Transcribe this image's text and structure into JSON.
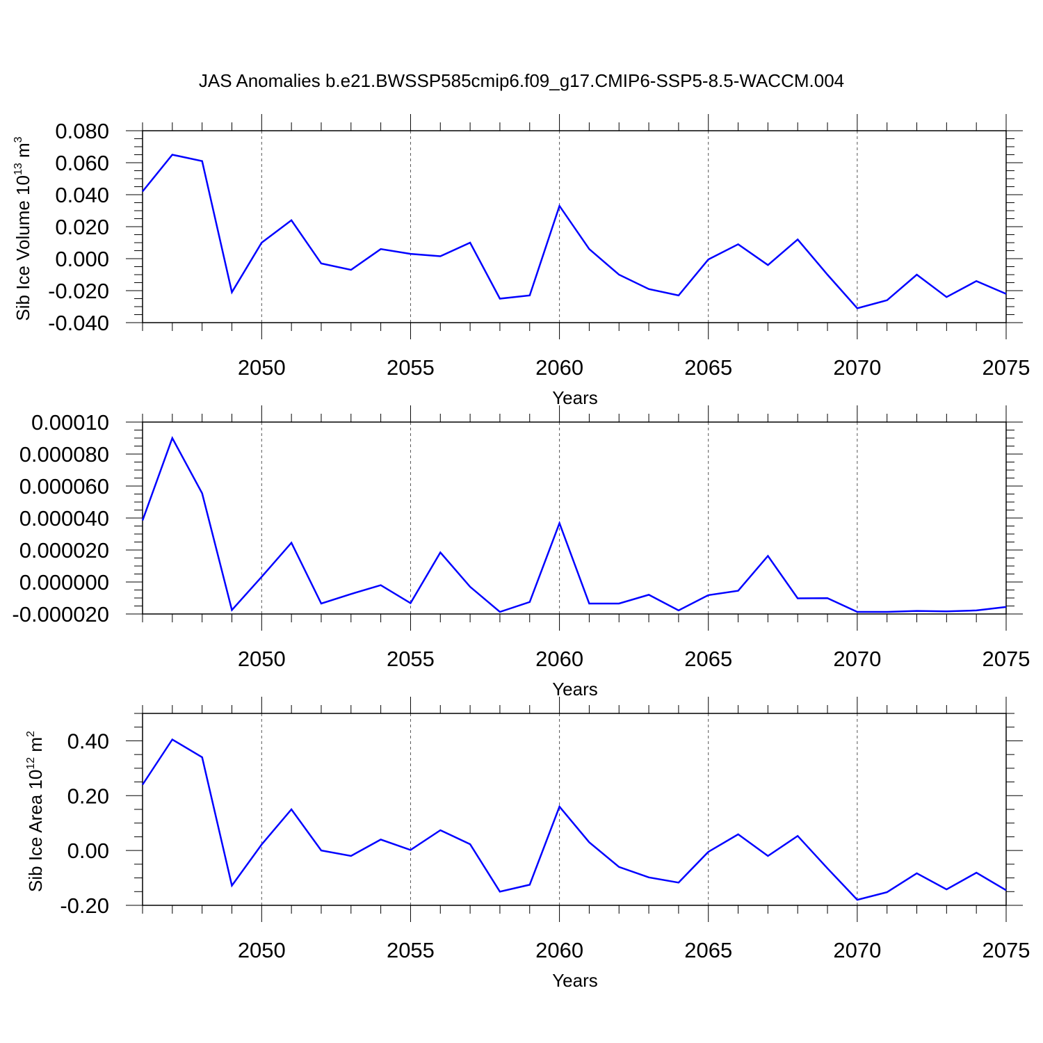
{
  "title": "JAS Anomalies b.e21.BWSSP585cmip6.f09_g17.CMIP6-SSP5-8.5-WACCM.004",
  "colors": {
    "line": "#0000ff",
    "axis": "#000000",
    "grid": "#555555"
  },
  "chart_data": [
    {
      "type": "line",
      "ylabel": "Sib Ice Volume",
      "ylabel_unit_base": "10",
      "ylabel_unit_exp": "13",
      "ylabel_unit_rest": " m",
      "ylabel_unit_exp2": "3",
      "xlabel": "Years",
      "xlim": [
        2046,
        2075
      ],
      "ylim": [
        -0.04,
        0.08
      ],
      "yticks": [
        -0.04,
        -0.02,
        0.0,
        0.02,
        0.04,
        0.06,
        0.08
      ],
      "yticklabels": [
        "-0.040",
        "-0.020",
        "0.000",
        "0.020",
        "0.040",
        "0.060",
        "0.080"
      ],
      "xticks": [
        2050,
        2055,
        2060,
        2065,
        2070,
        2075
      ],
      "xticklabels": [
        "2050",
        "2055",
        "2060",
        "2065",
        "2070",
        "2075"
      ],
      "x": [
        2046,
        2047,
        2048,
        2049,
        2050,
        2051,
        2052,
        2053,
        2054,
        2055,
        2056,
        2057,
        2058,
        2059,
        2060,
        2061,
        2062,
        2063,
        2064,
        2065,
        2066,
        2067,
        2068,
        2069,
        2070,
        2071,
        2072,
        2073,
        2074,
        2075
      ],
      "values": [
        0.042,
        0.065,
        0.061,
        -0.021,
        0.01,
        0.024,
        -0.003,
        -0.007,
        0.006,
        0.003,
        0.0015,
        0.01,
        -0.025,
        -0.023,
        0.033,
        0.006,
        -0.01,
        -0.019,
        -0.023,
        -0.0005,
        0.009,
        -0.004,
        0.012,
        -0.01,
        -0.031,
        -0.026,
        -0.01,
        -0.024,
        -0.014,
        -0.022
      ]
    },
    {
      "type": "line",
      "ylabel": "",
      "xlabel": "Years",
      "xlim": [
        2046,
        2075
      ],
      "ylim": [
        -2e-05,
        0.0001
      ],
      "yticks": [
        -2e-05,
        0.0,
        2e-05,
        4e-05,
        6e-05,
        8e-05,
        0.0001
      ],
      "yticklabels": [
        "-0.000020",
        "0.000000",
        "0.000020",
        "0.000040",
        "0.000060",
        "0.000080",
        "0.00010"
      ],
      "xticks": [
        2050,
        2055,
        2060,
        2065,
        2070,
        2075
      ],
      "xticklabels": [
        "2050",
        "2055",
        "2060",
        "2065",
        "2070",
        "2075"
      ],
      "x": [
        2046,
        2047,
        2048,
        2049,
        2050,
        2051,
        2052,
        2053,
        2054,
        2055,
        2056,
        2057,
        2058,
        2059,
        2060,
        2061,
        2062,
        2063,
        2064,
        2065,
        2066,
        2067,
        2068,
        2069,
        2070,
        2071,
        2072,
        2073,
        2074,
        2075
      ],
      "values": [
        3.85e-05,
        9e-05,
        5.55e-05,
        -1.75e-05,
        3.2e-06,
        2.45e-05,
        -1.35e-05,
        -7.5e-06,
        -2e-06,
        -1.32e-05,
        1.85e-05,
        -3e-06,
        -1.87e-05,
        -1.25e-05,
        3.68e-05,
        -1.35e-05,
        -1.35e-05,
        -8e-06,
        -1.78e-05,
        -8.2e-06,
        -5.5e-06,
        1.63e-05,
        -1.02e-05,
        -1.01e-05,
        -1.87e-05,
        -1.87e-05,
        -1.81e-05,
        -1.84e-05,
        -1.78e-05,
        -1.56e-05
      ]
    },
    {
      "type": "line",
      "ylabel": "Sib Ice Area",
      "ylabel_unit_base": "10",
      "ylabel_unit_exp": "12",
      "ylabel_unit_rest": " m",
      "ylabel_unit_exp2": "2",
      "xlabel": "Years",
      "xlim": [
        2046,
        2075
      ],
      "ylim": [
        -0.2,
        0.5
      ],
      "yticks": [
        -0.2,
        0.0,
        0.2,
        0.4
      ],
      "yticklabels": [
        "-0.20",
        "0.00",
        "0.20",
        "0.40"
      ],
      "xticks": [
        2050,
        2055,
        2060,
        2065,
        2070,
        2075
      ],
      "xticklabels": [
        "2050",
        "2055",
        "2060",
        "2065",
        "2070",
        "2075"
      ],
      "x": [
        2046,
        2047,
        2048,
        2049,
        2050,
        2051,
        2052,
        2053,
        2054,
        2055,
        2056,
        2057,
        2058,
        2059,
        2060,
        2061,
        2062,
        2063,
        2064,
        2065,
        2066,
        2067,
        2068,
        2069,
        2070,
        2071,
        2072,
        2073,
        2074,
        2075
      ],
      "values": [
        0.24,
        0.405,
        0.34,
        -0.128,
        0.022,
        0.15,
        0.0,
        -0.02,
        0.04,
        0.002,
        0.074,
        0.023,
        -0.15,
        -0.125,
        0.16,
        0.03,
        -0.06,
        -0.098,
        -0.117,
        -0.005,
        0.059,
        -0.02,
        0.053,
        -0.065,
        -0.18,
        -0.152,
        -0.083,
        -0.142,
        -0.081,
        -0.145
      ]
    }
  ]
}
